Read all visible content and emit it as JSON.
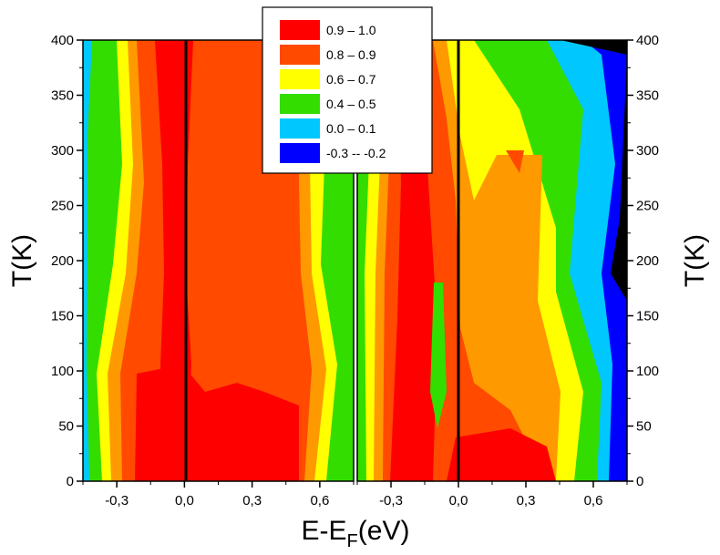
{
  "chart_data": {
    "type": "heatmap",
    "xlabel_main": "E-E",
    "xlabel_sub": "F",
    "xlabel_unit": "(eV)",
    "ylabel_left": "T(K)",
    "ylabel_right": "T(K)",
    "grid": false,
    "legend_placement": "top-center",
    "legend": [
      {
        "label": "0.9  –  1.0",
        "color": "#ff0000"
      },
      {
        "label": "0.8  –  0.9",
        "color": "#ff4a00"
      },
      {
        "label": "0.6  –  0.7",
        "color": "#ffff00"
      },
      {
        "label": "0.4  –  0.5",
        "color": "#33dd00"
      },
      {
        "label": "0.0  –  0.1",
        "color": "#00c8ff"
      },
      {
        "label": "-0.3  --  -0.2",
        "color": "#0000ff"
      }
    ],
    "panels": [
      {
        "name": "left",
        "xlim": [
          -0.45,
          0.75
        ],
        "ylim": [
          0,
          400
        ],
        "x_ticks": [
          -0.3,
          0.0,
          0.3,
          0.6
        ],
        "x_tick_labels": [
          "-0,3",
          "0,0",
          "0,3",
          "0,6"
        ],
        "y_ticks": [
          0,
          50,
          100,
          150,
          200,
          250,
          300,
          350,
          400
        ],
        "y_tick_labels": [
          "0",
          "50",
          "100",
          "150",
          "200",
          "250",
          "300",
          "350",
          "400"
        ],
        "y_axis_side": "left",
        "fermi_line_x": 0.0
      },
      {
        "name": "right",
        "xlim": [
          -0.45,
          0.75
        ],
        "ylim": [
          0,
          400
        ],
        "x_ticks": [
          -0.3,
          0.0,
          0.3,
          0.6
        ],
        "x_tick_labels": [
          "-0,3",
          "0,0",
          "0,3",
          "0,6"
        ],
        "y_ticks": [
          0,
          50,
          100,
          150,
          200,
          250,
          300,
          350,
          400
        ],
        "y_tick_labels": [
          "0",
          "50",
          "100",
          "150",
          "200",
          "250",
          "300",
          "350",
          "400"
        ],
        "y_axis_side": "right",
        "fermi_line_x": 0.0
      }
    ]
  }
}
